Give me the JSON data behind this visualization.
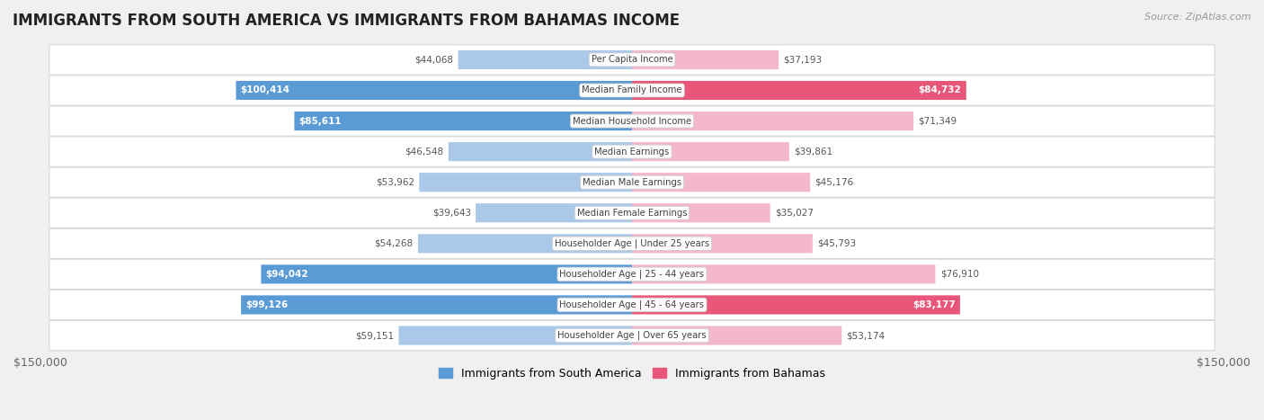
{
  "title": "IMMIGRANTS FROM SOUTH AMERICA VS IMMIGRANTS FROM BAHAMAS INCOME",
  "source": "Source: ZipAtlas.com",
  "categories": [
    "Per Capita Income",
    "Median Family Income",
    "Median Household Income",
    "Median Earnings",
    "Median Male Earnings",
    "Median Female Earnings",
    "Householder Age | Under 25 years",
    "Householder Age | 25 - 44 years",
    "Householder Age | 45 - 64 years",
    "Householder Age | Over 65 years"
  ],
  "south_america_values": [
    44068,
    100414,
    85611,
    46548,
    53962,
    39643,
    54268,
    94042,
    99126,
    59151
  ],
  "bahamas_values": [
    37193,
    84732,
    71349,
    39861,
    45176,
    35027,
    45793,
    76910,
    83177,
    53174
  ],
  "south_america_labels": [
    "$44,068",
    "$100,414",
    "$85,611",
    "$46,548",
    "$53,962",
    "$39,643",
    "$54,268",
    "$94,042",
    "$99,126",
    "$59,151"
  ],
  "bahamas_labels": [
    "$37,193",
    "$84,732",
    "$71,349",
    "$39,861",
    "$45,176",
    "$35,027",
    "$45,793",
    "$76,910",
    "$83,177",
    "$53,174"
  ],
  "sa_color_light": "#aac8e8",
  "sa_color_dark": "#5b9bd5",
  "bh_color_light": "#f4b8cc",
  "bh_color_dark": "#e8577a",
  "xlim": 150000,
  "background_color": "#f0f0f0",
  "row_bg_light": "#f8f8f8",
  "row_bg_dark": "#eeeeee",
  "legend_south_america": "Immigrants from South America",
  "legend_bahamas": "Immigrants from Bahamas",
  "large_threshold": 0.52
}
